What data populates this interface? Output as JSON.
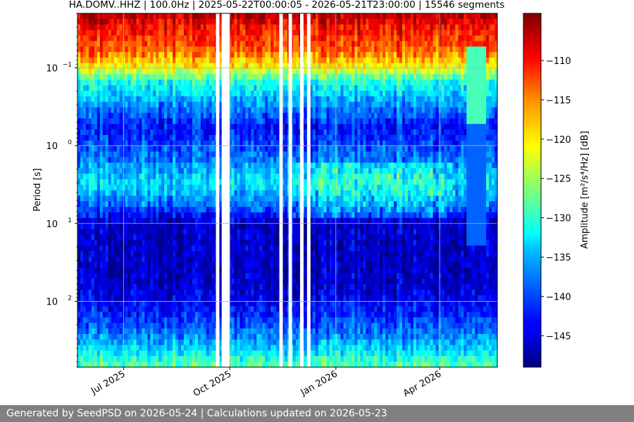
{
  "chart_data": {
    "type": "heatmap",
    "title": "HA.DOMV..HHZ | 100.0Hz | 2025-05-22T00:00:05 - 2026-05-21T23:00:00 | 15546 segments",
    "ylabel": "Period [s]",
    "xlabel": "",
    "colorbar_label": "Amplitude [m²/s⁴/Hz] [dB]",
    "y_scale": "log",
    "y_inverted": true,
    "ylim": [
      0.02,
      700
    ],
    "xlim": [
      "2025-05-22",
      "2026-05-21"
    ],
    "x_ticks": [
      {
        "date": "2025-07-01",
        "label": "Jul 2025"
      },
      {
        "date": "2025-10-01",
        "label": "Oct 2025"
      },
      {
        "date": "2026-01-01",
        "label": "Jan 2026"
      },
      {
        "date": "2026-04-01",
        "label": "Apr 2026"
      }
    ],
    "y_ticks": [
      {
        "value": 0.1,
        "base": "10",
        "exp": "−1"
      },
      {
        "value": 1,
        "base": "10",
        "exp": "0"
      },
      {
        "value": 10,
        "base": "10",
        "exp": "1"
      },
      {
        "value": 100,
        "base": "10",
        "exp": "2"
      }
    ],
    "colorbar_range": [
      -149,
      -104
    ],
    "colorbar_ticks": [
      -110,
      -115,
      -120,
      -125,
      -130,
      -135,
      -140,
      -145
    ],
    "colormap": "jet",
    "grid": true,
    "data_gaps": [
      [
        "2025-09-19",
        "2025-09-22"
      ],
      [
        "2025-09-24",
        "2025-10-01"
      ],
      [
        "2025-11-13",
        "2025-11-16"
      ],
      [
        "2025-11-21",
        "2025-11-24"
      ],
      [
        "2025-12-01",
        "2025-12-04"
      ],
      [
        "2025-12-07",
        "2025-12-10"
      ]
    ],
    "period_profile": [
      {
        "period": 0.02,
        "amplitude_db": -106
      },
      {
        "period": 0.03,
        "amplitude_db": -110
      },
      {
        "period": 0.06,
        "amplitude_db": -114
      },
      {
        "period": 0.1,
        "amplitude_db": -121
      },
      {
        "period": 0.15,
        "amplitude_db": -131
      },
      {
        "period": 0.3,
        "amplitude_db": -137
      },
      {
        "period": 0.6,
        "amplitude_db": -143
      },
      {
        "period": 1.5,
        "amplitude_db": -138
      },
      {
        "period": 3,
        "amplitude_db": -133
      },
      {
        "period": 6,
        "amplitude_db": -139
      },
      {
        "period": 10,
        "amplitude_db": -146
      },
      {
        "period": 60,
        "amplitude_db": -146
      },
      {
        "period": 150,
        "amplitude_db": -142
      },
      {
        "period": 300,
        "amplitude_db": -137
      },
      {
        "period": 700,
        "amplitude_db": -128
      }
    ]
  },
  "footer": {
    "text": "Generated by SeedPSD on 2026-05-24 | Calculations updated on 2026-05-23"
  }
}
